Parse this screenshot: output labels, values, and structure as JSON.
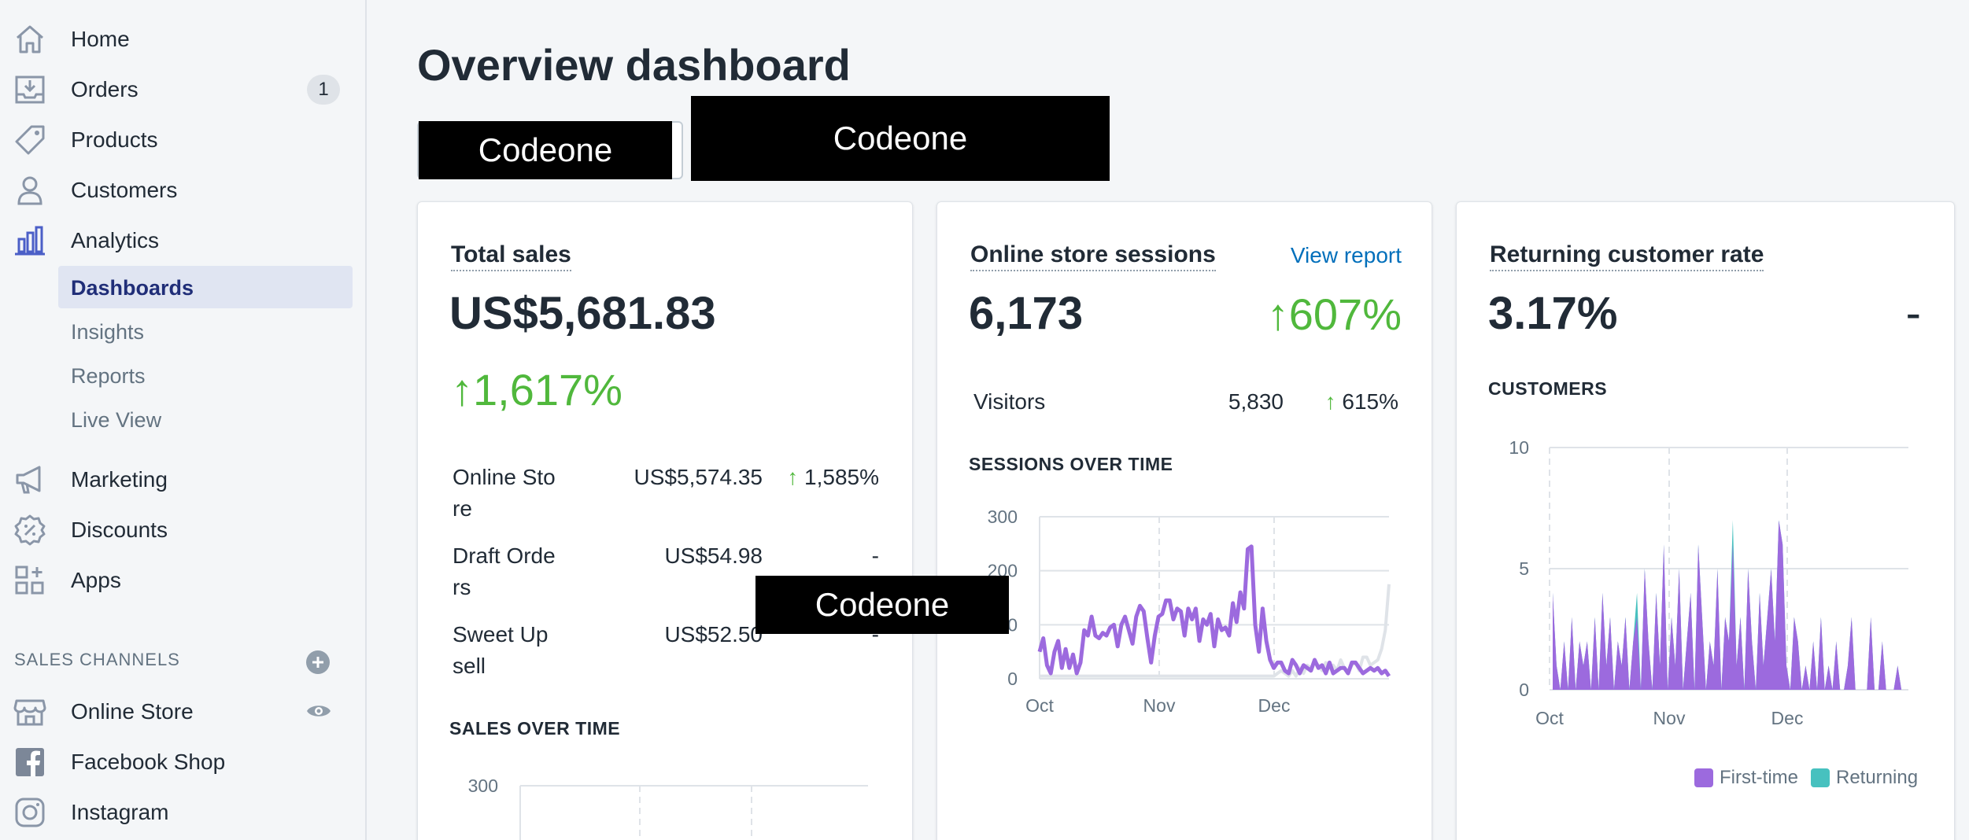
{
  "sidebar": {
    "items": [
      {
        "label": "Home",
        "icon": "home-icon"
      },
      {
        "label": "Orders",
        "icon": "orders-icon",
        "badge": "1"
      },
      {
        "label": "Products",
        "icon": "tag-icon"
      },
      {
        "label": "Customers",
        "icon": "person-icon"
      },
      {
        "label": "Analytics",
        "icon": "analytics-icon"
      }
    ],
    "analytics_sub": [
      {
        "label": "Dashboards",
        "active": true
      },
      {
        "label": "Insights"
      },
      {
        "label": "Reports"
      },
      {
        "label": "Live View"
      }
    ],
    "items2": [
      {
        "label": "Marketing",
        "icon": "megaphone-icon"
      },
      {
        "label": "Discounts",
        "icon": "discount-icon"
      },
      {
        "label": "Apps",
        "icon": "apps-icon"
      }
    ],
    "sales_channels_header": "SALES CHANNELS",
    "channels": [
      {
        "label": "Online Store",
        "icon": "store-icon"
      },
      {
        "label": "Facebook Shop",
        "icon": "facebook-icon"
      },
      {
        "label": "Instagram",
        "icon": "instagram-icon"
      }
    ]
  },
  "main": {
    "title": "Overview dashboard",
    "redacted_1": "Codeone",
    "redacted_2": "Codeone",
    "redacted_3": "Codeone"
  },
  "total_sales": {
    "title": "Total sales",
    "value": "US$5,681.83",
    "change": "1,617%",
    "rows": [
      {
        "label": "Online Sto re",
        "value": "US$5,574.35",
        "change": "1,585%"
      },
      {
        "label": "Draft Orde rs",
        "value": "US$54.98",
        "change": "-"
      },
      {
        "label": "Sweet Up sell",
        "value": "US$52.50",
        "change": "-"
      }
    ],
    "chart_title": "SALES OVER TIME",
    "y_tick_top": "300"
  },
  "sessions": {
    "title": "Online store sessions",
    "link": "View report",
    "value": "6,173",
    "change": "607%",
    "visitors_label": "Visitors",
    "visitors_value": "5,830",
    "visitors_change": "615%",
    "chart_title": "SESSIONS OVER TIME"
  },
  "returning": {
    "title": "Returning customer rate",
    "value": "3.17%",
    "change": "-",
    "chart_title": "CUSTOMERS",
    "legend": [
      {
        "name": "First-time",
        "color": "#9c6ade"
      },
      {
        "name": "Returning",
        "color": "#47c1bf"
      }
    ]
  },
  "colors": {
    "accent": "#9c6ade",
    "secondary": "#47c1bf",
    "green": "#50b83c",
    "link": "#006fbb"
  },
  "chart_data": [
    {
      "type": "line",
      "title": "SESSIONS OVER TIME",
      "x_ticks": [
        "Oct",
        "Nov",
        "Dec"
      ],
      "y_ticks": [
        "300",
        "200",
        "100",
        "0"
      ],
      "ylim": [
        0,
        300
      ],
      "series": [
        {
          "color": "#9c6ade",
          "values": [
            50,
            75,
            25,
            10,
            50,
            70,
            20,
            55,
            20,
            45,
            10,
            30,
            90,
            80,
            115,
            80,
            75,
            85,
            80,
            95,
            100,
            60,
            100,
            115,
            90,
            65,
            115,
            135,
            125,
            75,
            30,
            80,
            115,
            120,
            145,
            145,
            110,
            130,
            125,
            80,
            130,
            110,
            130,
            70,
            110,
            100,
            120,
            60,
            110,
            90,
            95,
            80,
            140,
            105,
            160,
            130,
            240,
            245,
            100,
            50,
            130,
            70,
            35,
            20,
            30,
            30,
            15,
            10,
            35,
            25,
            10,
            25,
            20,
            15,
            35,
            20,
            25,
            10,
            30,
            10,
            15,
            20,
            20,
            10,
            30,
            30,
            20,
            10,
            15,
            20,
            15,
            20,
            10,
            15,
            5
          ]
        },
        {
          "color": "#dfe3e8",
          "values": [
            5,
            5,
            5,
            5,
            5,
            5,
            5,
            5,
            5,
            5,
            5,
            5,
            5,
            5,
            5,
            5,
            5,
            5,
            5,
            5,
            5,
            5,
            5,
            5,
            5,
            5,
            5,
            5,
            5,
            5,
            5,
            5,
            5,
            5,
            5,
            5,
            5,
            5,
            5,
            5,
            5,
            5,
            5,
            5,
            5,
            5,
            5,
            5,
            5,
            5,
            5,
            5,
            5,
            5,
            5,
            5,
            5,
            5,
            5,
            5,
            5,
            5,
            5,
            5,
            10,
            15,
            10,
            5,
            15,
            5,
            20,
            10,
            25,
            20,
            30,
            25,
            15,
            30,
            20,
            25,
            15,
            35,
            20,
            10,
            25,
            30,
            15,
            40,
            40,
            25,
            30,
            35,
            55,
            90,
            175
          ]
        }
      ]
    },
    {
      "type": "area",
      "title": "CUSTOMERS",
      "x_ticks": [
        "Oct",
        "Nov",
        "Dec"
      ],
      "y_ticks": [
        "10",
        "5",
        "0"
      ],
      "ylim": [
        0,
        10
      ],
      "series": [
        {
          "name": "First-time",
          "color": "#9c6ade",
          "values": [
            4,
            1,
            0,
            2,
            0,
            3,
            0,
            2,
            1,
            2,
            0,
            3,
            0,
            4,
            1,
            3,
            0,
            2,
            1,
            3,
            0,
            2,
            3,
            0,
            5,
            2,
            0,
            4,
            1,
            6,
            0,
            3,
            1,
            5,
            0,
            2,
            4,
            0,
            6,
            3,
            0,
            2,
            1,
            5,
            0,
            3,
            2,
            6,
            1,
            3,
            0,
            5,
            2,
            0,
            4,
            1,
            3,
            5,
            2,
            7,
            6,
            1,
            0,
            3,
            2,
            0,
            1,
            0,
            2,
            0,
            3,
            0,
            1,
            0,
            2,
            0,
            0,
            1,
            3,
            0,
            0,
            0,
            0,
            3,
            0,
            0,
            2,
            0,
            0,
            0,
            1,
            0,
            0
          ]
        },
        {
          "name": "Returning",
          "color": "#47c1bf",
          "values": [
            0,
            0,
            0,
            0,
            0,
            0,
            0,
            0,
            0,
            0,
            0,
            0,
            0,
            0,
            0,
            0,
            0,
            0,
            0,
            0,
            0,
            0,
            1,
            0,
            0,
            0,
            0,
            0,
            0,
            0,
            0,
            0,
            0,
            0,
            0,
            0,
            0,
            0,
            0,
            0,
            0,
            0,
            0,
            0,
            0,
            0,
            0,
            1,
            0,
            0,
            0,
            0,
            0,
            0,
            0,
            0,
            0,
            0,
            0,
            0,
            0,
            0,
            0,
            0,
            0,
            0,
            0,
            0,
            0,
            0,
            0,
            0,
            0,
            0,
            0,
            0,
            0,
            0,
            0,
            0,
            0,
            0,
            0,
            0,
            0,
            0,
            0,
            0,
            0,
            0,
            0,
            0,
            0
          ]
        }
      ]
    },
    {
      "type": "line",
      "title": "SALES OVER TIME",
      "y_ticks": [
        "300"
      ],
      "series": []
    }
  ]
}
